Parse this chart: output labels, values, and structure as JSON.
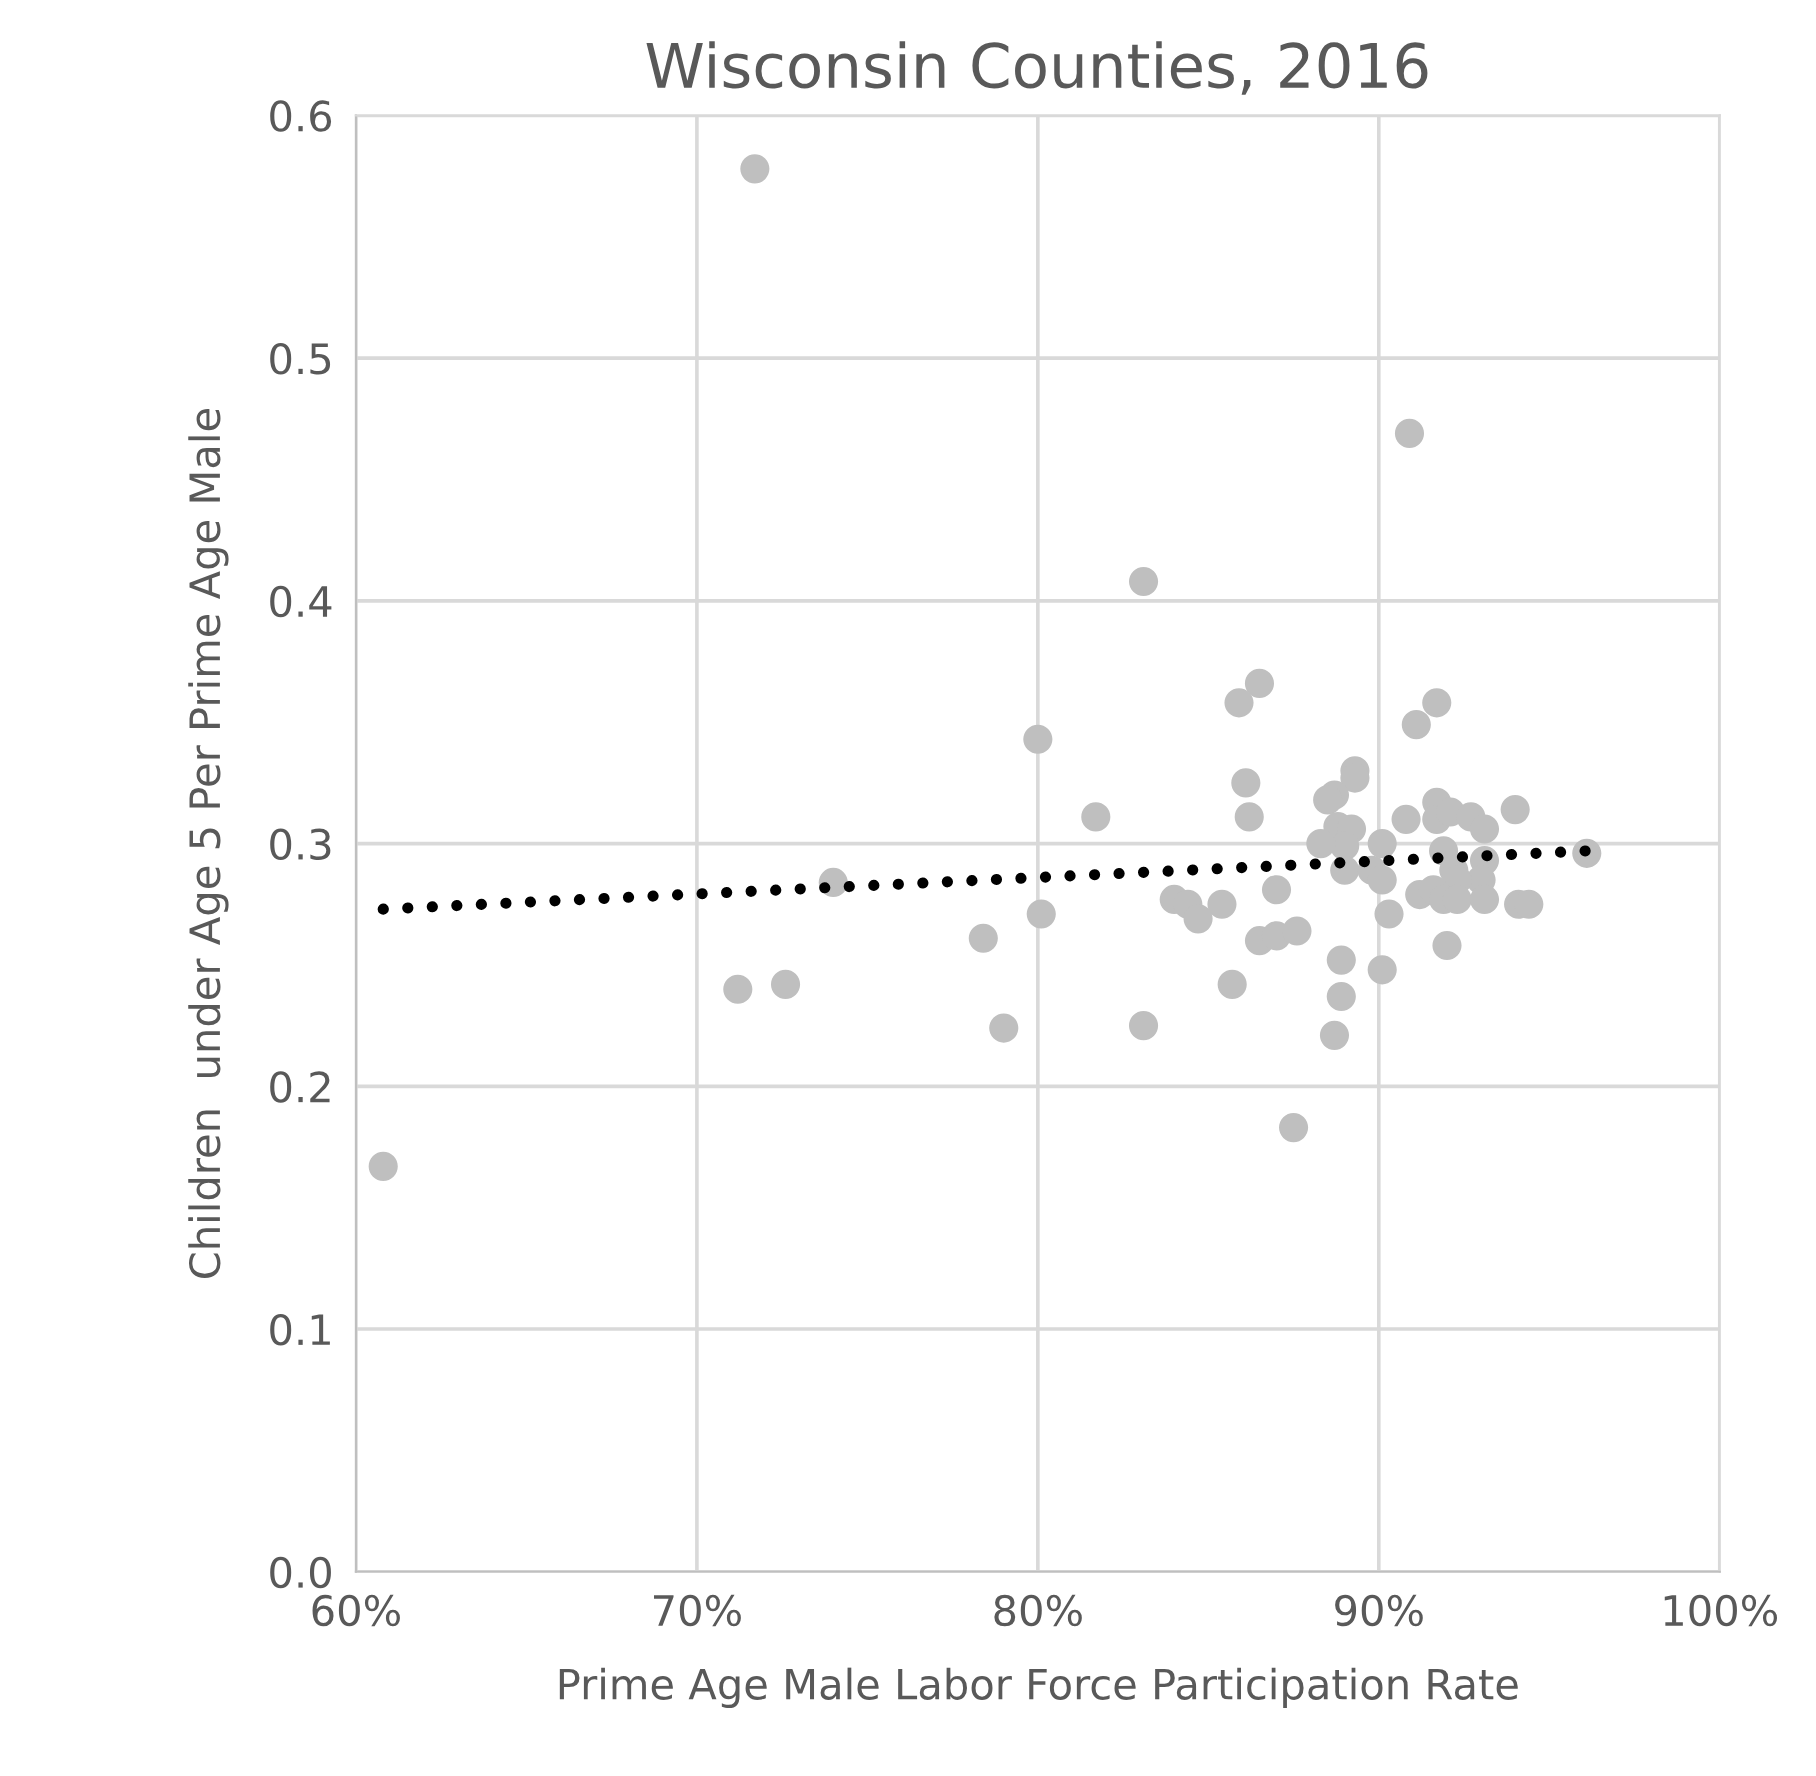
{
  "chart_data": {
    "type": "scatter",
    "title": "Wisconsin Counties, 2016",
    "xlabel": "Prime Age Male Labor Force Participation Rate",
    "ylabel": "Children  under Age 5 Per Prime Age Male",
    "xlim": [
      60,
      100
    ],
    "xticks": [
      {
        "value": 60,
        "label": "60%"
      },
      {
        "value": 70,
        "label": "70%"
      },
      {
        "value": 80,
        "label": "80%"
      },
      {
        "value": 90,
        "label": "90%"
      },
      {
        "value": 100,
        "label": "100%"
      }
    ],
    "ylim": [
      0,
      0.6
    ],
    "yticks": [
      {
        "value": 0,
        "label": "0.0"
      },
      0.1,
      0.2,
      0.3,
      0.4,
      0.5,
      0.6
    ],
    "grid": true,
    "marker": "circle",
    "series": [
      {
        "color": "#bfbfbf",
        "x": [
          60.8,
          71.7,
          71.2,
          72.6,
          74.0,
          78.4,
          79.0,
          80.0,
          83.1,
          86.5,
          85.9,
          91.7,
          91.1,
          90.9,
          89.3,
          89.3,
          86.1,
          88.7,
          88.5,
          81.7,
          86.2,
          88.8,
          91.7,
          91.7,
          92.1,
          92.7,
          93.1,
          94.0,
          90.8,
          89.2,
          89.0,
          88.3,
          90.1,
          91.9,
          93.1,
          96.1,
          89.0,
          89.8,
          90.1,
          92.2,
          93.0,
          92.3,
          87.0,
          91.2,
          91.6,
          91.9,
          92.3,
          93.1,
          94.1,
          94.4,
          84.0,
          84.4,
          84.7,
          85.4,
          80.1,
          90.3,
          86.5,
          87.0,
          87.6,
          88.9,
          90.1,
          92.0,
          85.7,
          88.9,
          83.1,
          88.7,
          87.5
        ],
        "values": [
          0.167,
          0.578,
          0.24,
          0.242,
          0.284,
          0.261,
          0.224,
          0.343,
          0.408,
          0.366,
          0.358,
          0.358,
          0.349,
          0.469,
          0.33,
          0.327,
          0.325,
          0.32,
          0.318,
          0.311,
          0.311,
          0.307,
          0.317,
          0.31,
          0.313,
          0.311,
          0.306,
          0.314,
          0.31,
          0.306,
          0.299,
          0.3,
          0.3,
          0.297,
          0.293,
          0.296,
          0.289,
          0.289,
          0.285,
          0.289,
          0.285,
          0.285,
          0.281,
          0.279,
          0.281,
          0.277,
          0.277,
          0.277,
          0.275,
          0.275,
          0.277,
          0.275,
          0.269,
          0.275,
          0.271,
          0.271,
          0.26,
          0.262,
          0.264,
          0.252,
          0.248,
          0.258,
          0.242,
          0.237,
          0.225,
          0.221,
          0.183
        ]
      },
      {
        "type": "line",
        "color": "#000000",
        "line_style": "dotted",
        "marker": "none",
        "x": [
          60.8,
          96.1
        ],
        "values": [
          0.273,
          0.297
        ]
      }
    ]
  }
}
